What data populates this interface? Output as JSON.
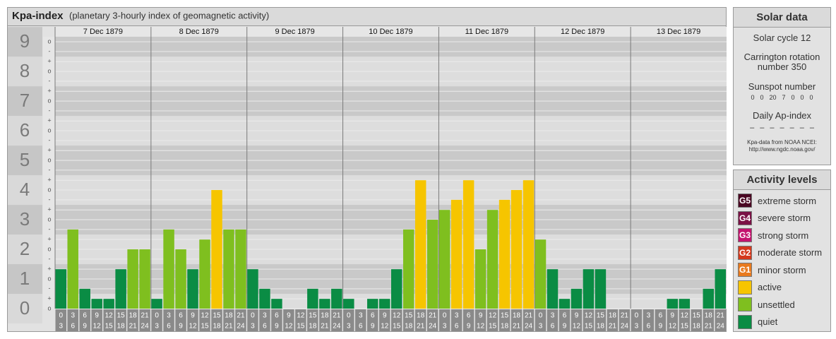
{
  "chart_data": {
    "type": "bar",
    "title": "Kpa-index",
    "subtitle": "(planetary 3-hourly index of geomagnetic activity)",
    "categories": [
      [
        0,
        3
      ],
      [
        3,
        6
      ],
      [
        6,
        9
      ],
      [
        9,
        12
      ],
      [
        12,
        15
      ],
      [
        15,
        18
      ],
      [
        18,
        21
      ],
      [
        21,
        24
      ]
    ],
    "series": [
      {
        "name": "7 Dec 1879",
        "values": [
          1.33,
          2.67,
          0.67,
          0.33,
          0.33,
          1.33,
          2,
          2
        ],
        "colors": [
          "#0a8c44",
          "#7fbf1f",
          "#0a8c44",
          "#0a8c44",
          "#0a8c44",
          "#0a8c44",
          "#7fbf1f",
          "#7fbf1f"
        ]
      },
      {
        "name": "8 Dec 1879",
        "values": [
          0.33,
          2.67,
          2,
          1.33,
          2.33,
          4,
          2.67,
          2.67
        ],
        "colors": [
          "#0a8c44",
          "#7fbf1f",
          "#7fbf1f",
          "#0a8c44",
          "#7fbf1f",
          "#f6c500",
          "#7fbf1f",
          "#7fbf1f"
        ]
      },
      {
        "name": "9 Dec 1879",
        "values": [
          1.33,
          0.67,
          0.33,
          0,
          0,
          0.67,
          0.33,
          0.67
        ],
        "colors": [
          "#0a8c44",
          "#0a8c44",
          "#0a8c44",
          "#0a8c44",
          "#0a8c44",
          "#0a8c44",
          "#0a8c44",
          "#0a8c44"
        ]
      },
      {
        "name": "10 Dec 1879",
        "values": [
          0.33,
          0,
          0.33,
          0.33,
          1.33,
          2.67,
          4.33,
          3
        ],
        "colors": [
          "#0a8c44",
          "#0a8c44",
          "#0a8c44",
          "#0a8c44",
          "#0a8c44",
          "#7fbf1f",
          "#f6c500",
          "#7fbf1f"
        ]
      },
      {
        "name": "11 Dec 1879",
        "values": [
          3.33,
          3.67,
          4.33,
          2,
          3.33,
          3.67,
          4,
          4.33
        ],
        "colors": [
          "#7fbf1f",
          "#f6c500",
          "#f6c500",
          "#7fbf1f",
          "#7fbf1f",
          "#f6c500",
          "#f6c500",
          "#f6c500"
        ]
      },
      {
        "name": "12 Dec 1879",
        "values": [
          2.33,
          1.33,
          0.33,
          0.67,
          1.33,
          1.33,
          0,
          0
        ],
        "colors": [
          "#7fbf1f",
          "#0a8c44",
          "#0a8c44",
          "#0a8c44",
          "#0a8c44",
          "#0a8c44",
          "#0a8c44",
          "#0a8c44"
        ]
      },
      {
        "name": "13 Dec 1879",
        "values": [
          0,
          0,
          0,
          0.33,
          0.33,
          0,
          0.67,
          1.33
        ],
        "colors": [
          "#0a8c44",
          "#0a8c44",
          "#0a8c44",
          "#0a8c44",
          "#0a8c44",
          "#0a8c44",
          "#0a8c44",
          "#0a8c44"
        ]
      }
    ],
    "ylim": [
      0,
      9.17
    ],
    "yticks": [
      0,
      1,
      2,
      3,
      4,
      5,
      6,
      7,
      8,
      9
    ],
    "minor_ticks": [
      {
        "value": 0,
        "label": "o"
      },
      {
        "value": 0.33,
        "label": "+"
      },
      {
        "value": 0.67,
        "label": "-"
      },
      {
        "value": 1,
        "label": "o"
      },
      {
        "value": 1.33,
        "label": "+"
      },
      {
        "value": 1.67,
        "label": "-"
      },
      {
        "value": 2,
        "label": "o"
      },
      {
        "value": 2.33,
        "label": "+"
      },
      {
        "value": 2.67,
        "label": "-"
      },
      {
        "value": 3,
        "label": "o"
      },
      {
        "value": 3.33,
        "label": "+"
      },
      {
        "value": 3.67,
        "label": "-"
      },
      {
        "value": 4,
        "label": "o"
      },
      {
        "value": 4.33,
        "label": "+"
      },
      {
        "value": 4.67,
        "label": "-"
      },
      {
        "value": 5,
        "label": "o"
      },
      {
        "value": 5.33,
        "label": "+"
      },
      {
        "value": 5.67,
        "label": "-"
      },
      {
        "value": 6,
        "label": "o"
      },
      {
        "value": 6.33,
        "label": "+"
      },
      {
        "value": 6.67,
        "label": "-"
      },
      {
        "value": 7,
        "label": "o"
      },
      {
        "value": 7.33,
        "label": "+"
      },
      {
        "value": 7.67,
        "label": "-"
      },
      {
        "value": 8,
        "label": "o"
      },
      {
        "value": 8.33,
        "label": "+"
      },
      {
        "value": 8.67,
        "label": "-"
      },
      {
        "value": 9,
        "label": "o"
      }
    ],
    "grid": true
  },
  "solar_data": {
    "title": "Solar data",
    "solar_cycle": "Solar cycle 12",
    "carrington": "Carrington rotation number 350",
    "sunspot_label": "Sunspot number",
    "sunspot_numbers": [
      0,
      0,
      20,
      7,
      0,
      0,
      0
    ],
    "ap_label": "Daily Ap-index",
    "ap_values": [
      "–",
      "–",
      "–",
      "–",
      "–",
      "–",
      "–"
    ],
    "source_note": "Kpa-data from NOAA NCEI:",
    "source_url": "http://www.ngdc.noaa.gov/"
  },
  "activity_levels": {
    "title": "Activity levels",
    "items": [
      {
        "code": "G5",
        "name": "extreme storm",
        "color": "#4a0722"
      },
      {
        "code": "G4",
        "name": "severe storm",
        "color": "#7a1245"
      },
      {
        "code": "G3",
        "name": "strong storm",
        "color": "#c4146e"
      },
      {
        "code": "G2",
        "name": "moderate storm",
        "color": "#d4381c"
      },
      {
        "code": "G1",
        "name": "minor storm",
        "color": "#e87a1e"
      },
      {
        "name": "active",
        "color": "#f6c500"
      },
      {
        "name": "unsettled",
        "color": "#7fbf1f"
      },
      {
        "name": "quiet",
        "color": "#0a8c44"
      }
    ]
  }
}
